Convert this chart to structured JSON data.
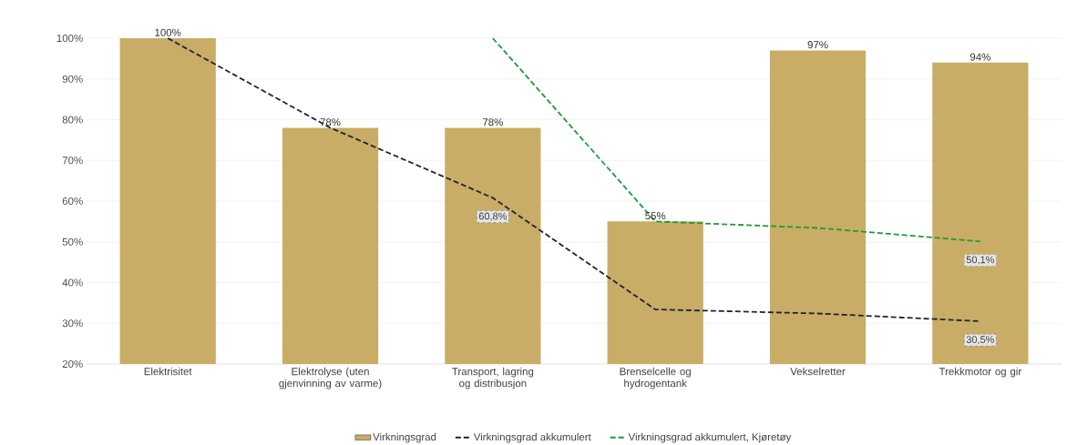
{
  "chart_data": {
    "type": "bar",
    "categories": [
      "Elektrisitet",
      "Elektrolyse (uten gjenvinning av varme)",
      "Transport, lagring og distribusjon",
      "Brenselcelle og hydrogentank",
      "Vekselretter",
      "Trekkmotor og gir"
    ],
    "series": [
      {
        "name": "Virkningsgrad",
        "color": "#c9ad66",
        "values": [
          100,
          78,
          78,
          55,
          97,
          94
        ],
        "value_labels": [
          "100%",
          "78%",
          "78%",
          "55%",
          "97%",
          "94%"
        ]
      },
      {
        "name": "Virkningsgrad akkumulert",
        "type": "line",
        "line_style": "dashed",
        "color": "#1f2630",
        "values": [
          100,
          78,
          60.8,
          33.4,
          32.4,
          30.5
        ],
        "value_labels": [
          null,
          null,
          "60,8%",
          null,
          null,
          "30,5%"
        ]
      },
      {
        "name": "Virkningsgrad akkumulert, Kjøretøy",
        "type": "line",
        "line_style": "dashed",
        "color": "#1e9a3c",
        "values": [
          null,
          null,
          100,
          55,
          53.4,
          50.1
        ],
        "value_labels": [
          null,
          null,
          null,
          null,
          null,
          "50,1%"
        ]
      }
    ],
    "ylim": [
      20,
      100
    ],
    "yticks": [
      {
        "value": 20,
        "label": "20%"
      },
      {
        "value": 30,
        "label": "30%"
      },
      {
        "value": 40,
        "label": "40%"
      },
      {
        "value": 50,
        "label": "50%"
      },
      {
        "value": 60,
        "label": "60%"
      },
      {
        "value": 70,
        "label": "70%"
      },
      {
        "value": 80,
        "label": "80%"
      },
      {
        "value": 90,
        "label": "90%"
      },
      {
        "value": 100,
        "label": "100%"
      }
    ],
    "grid": "y",
    "legend": "bottom"
  }
}
